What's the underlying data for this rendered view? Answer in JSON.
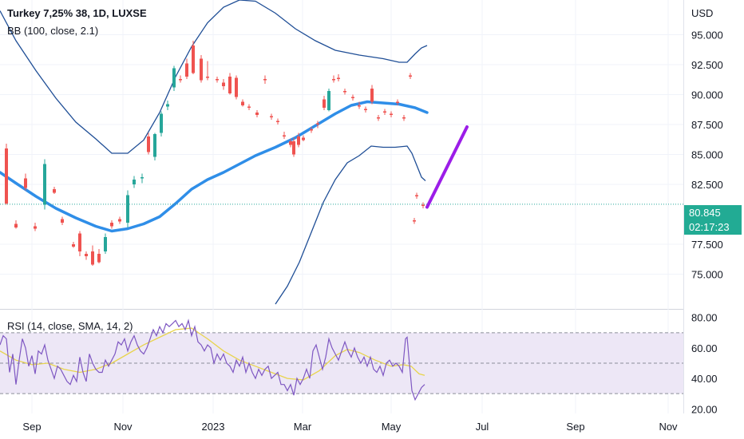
{
  "title": "Turkey  7,25% 38, 1D, LUXSE",
  "bb_label": "BB (100, close, 2.1)",
  "rsi_label": "RSI (14, close, SMA, 14, 2)",
  "currency": "USD",
  "last_price": "80.845",
  "countdown": "02:17:23",
  "colors": {
    "bb_basis": "#2f8ee8",
    "bb_band": "#1f4e96",
    "up": "#26a69a",
    "down": "#ef5350",
    "rsi_line": "#7e57c2",
    "rsi_ma": "#e8d44d",
    "rsi_band": "#ede7f6",
    "drawn_line": "#9c1de8",
    "price_line": "#26a69a"
  },
  "chart_data": [
    {
      "type": "candlestick",
      "x_ticks": [
        "Sep",
        "Nov",
        "2023",
        "Mar",
        "May",
        "Jul",
        "Sep",
        "Nov"
      ],
      "y_ticks": [
        "95.000",
        "92.500",
        "90.000",
        "87.500",
        "85.000",
        "82.500",
        "77.500",
        "75.000"
      ],
      "ylim": [
        72.5,
        97.5
      ],
      "last_price": 80.845,
      "bb_upper": [
        [
          0,
          97.0
        ],
        [
          20,
          94.5
        ],
        [
          45,
          92.0
        ],
        [
          70,
          89.7
        ],
        [
          95,
          87.7
        ],
        [
          120,
          86.3
        ],
        [
          140,
          85.1
        ],
        [
          160,
          85.1
        ],
        [
          180,
          86.2
        ],
        [
          200,
          88.5
        ],
        [
          220,
          91.5
        ],
        [
          240,
          94.0
        ],
        [
          260,
          96.0
        ],
        [
          280,
          97.3
        ],
        [
          300,
          97.9
        ],
        [
          320,
          97.8
        ],
        [
          345,
          96.8
        ],
        [
          370,
          95.5
        ],
        [
          395,
          94.5
        ],
        [
          420,
          93.7
        ],
        [
          450,
          93.3
        ],
        [
          480,
          93.0
        ],
        [
          500,
          92.7
        ],
        [
          510,
          92.7
        ],
        [
          520,
          93.4
        ],
        [
          528,
          93.9
        ],
        [
          535,
          94.1
        ]
      ],
      "bb_basis": [
        [
          0,
          83.5
        ],
        [
          20,
          82.6
        ],
        [
          45,
          81.5
        ],
        [
          70,
          80.5
        ],
        [
          95,
          79.7
        ],
        [
          120,
          79.0
        ],
        [
          140,
          78.6
        ],
        [
          160,
          78.8
        ],
        [
          180,
          79.2
        ],
        [
          200,
          79.8
        ],
        [
          220,
          80.9
        ],
        [
          240,
          82.1
        ],
        [
          260,
          82.9
        ],
        [
          280,
          83.5
        ],
        [
          300,
          84.2
        ],
        [
          320,
          84.9
        ],
        [
          345,
          85.6
        ],
        [
          370,
          86.4
        ],
        [
          395,
          87.4
        ],
        [
          420,
          88.4
        ],
        [
          440,
          89.1
        ],
        [
          460,
          89.4
        ],
        [
          480,
          89.3
        ],
        [
          500,
          89.2
        ],
        [
          520,
          88.9
        ],
        [
          535,
          88.5
        ]
      ],
      "bb_lower": [
        [
          345,
          72.5
        ],
        [
          360,
          74.0
        ],
        [
          375,
          76.0
        ],
        [
          390,
          78.5
        ],
        [
          405,
          81.0
        ],
        [
          420,
          82.9
        ],
        [
          435,
          84.3
        ],
        [
          450,
          84.9
        ],
        [
          465,
          85.7
        ],
        [
          480,
          85.6
        ],
        [
          495,
          85.6
        ],
        [
          510,
          85.7
        ],
        [
          516,
          85.1
        ],
        [
          522,
          84.1
        ],
        [
          528,
          83.1
        ],
        [
          533,
          82.8
        ]
      ],
      "candles": [
        [
          8,
          85.5,
          85.9,
          80.8,
          80.9
        ],
        [
          20,
          79.2,
          79.5,
          78.8,
          78.9
        ],
        [
          32,
          83.0,
          83.4,
          82.0,
          82.2
        ],
        [
          44,
          79.0,
          79.3,
          78.6,
          78.8
        ],
        [
          56,
          80.8,
          84.6,
          80.4,
          84.2
        ],
        [
          68,
          82.1,
          82.3,
          81.7,
          81.8
        ],
        [
          78,
          79.6,
          79.8,
          79.1,
          79.3
        ],
        [
          92,
          77.5,
          77.7,
          77.2,
          77.3
        ],
        [
          100,
          78.4,
          78.6,
          76.5,
          76.9
        ],
        [
          108,
          76.7,
          76.9,
          76.2,
          76.5
        ],
        [
          116,
          76.9,
          77.4,
          75.7,
          75.8
        ],
        [
          124,
          76.7,
          77.1,
          75.9,
          76.0
        ],
        [
          132,
          76.9,
          78.4,
          76.7,
          78.1
        ],
        [
          140,
          79.3,
          79.5,
          78.8,
          79.0
        ],
        [
          150,
          79.6,
          79.8,
          79.2,
          79.4
        ],
        [
          160,
          79.3,
          82.0,
          78.9,
          81.6
        ],
        [
          168,
          82.5,
          83.2,
          82.2,
          82.9
        ],
        [
          178,
          83.0,
          83.4,
          82.6,
          83.1
        ],
        [
          186,
          86.5,
          86.8,
          85.0,
          85.2
        ],
        [
          194,
          84.8,
          86.8,
          84.5,
          86.7
        ],
        [
          202,
          86.8,
          88.6,
          86.5,
          88.4
        ],
        [
          210,
          89.0,
          89.5,
          88.7,
          89.2
        ],
        [
          218,
          90.6,
          92.4,
          90.3,
          92.2
        ],
        [
          226,
          91.3,
          91.6,
          91.0,
          91.2
        ],
        [
          234,
          92.6,
          93.0,
          91.3,
          91.5
        ],
        [
          242,
          94.1,
          94.5,
          91.7,
          91.8
        ],
        [
          252,
          93.0,
          93.3,
          91.0,
          91.2
        ],
        [
          260,
          91.5,
          92.8,
          91.2,
          91.4
        ],
        [
          272,
          91.3,
          91.5,
          91.0,
          91.2
        ],
        [
          280,
          91.0,
          91.3,
          90.4,
          90.7
        ],
        [
          288,
          91.5,
          91.8,
          90.0,
          90.1
        ],
        [
          296,
          91.4,
          91.6,
          89.6,
          89.8
        ],
        [
          304,
          89.4,
          89.6,
          89.0,
          89.1
        ],
        [
          312,
          89.0,
          89.2,
          88.7,
          88.9
        ],
        [
          322,
          88.5,
          88.7,
          88.1,
          88.3
        ],
        [
          332,
          91.3,
          91.6,
          90.9,
          91.2
        ],
        [
          340,
          88.2,
          88.4,
          87.9,
          88.1
        ],
        [
          348,
          87.8,
          88.0,
          87.5,
          87.7
        ],
        [
          356,
          86.6,
          86.9,
          86.3,
          86.5
        ],
        [
          364,
          86.1,
          86.3,
          85.6,
          85.8
        ],
        [
          368,
          86.1,
          86.4,
          84.8,
          85.0
        ],
        [
          374,
          86.5,
          86.8,
          85.6,
          85.8
        ],
        [
          380,
          86.4,
          86.6,
          86.1,
          86.2
        ],
        [
          390,
          87.1,
          87.3,
          86.8,
          87.0
        ],
        [
          398,
          87.6,
          87.8,
          87.2,
          87.5
        ],
        [
          406,
          89.6,
          89.9,
          88.7,
          88.9
        ],
        [
          412,
          88.7,
          90.5,
          88.6,
          90.3
        ],
        [
          418,
          91.3,
          91.6,
          91.0,
          91.2
        ],
        [
          424,
          91.4,
          91.7,
          91.1,
          91.3
        ],
        [
          432,
          90.3,
          90.5,
          90.0,
          90.2
        ],
        [
          442,
          89.8,
          90.0,
          89.5,
          89.7
        ],
        [
          450,
          89.1,
          89.4,
          88.8,
          89.0
        ],
        [
          458,
          88.8,
          89.0,
          88.5,
          88.7
        ],
        [
          466,
          90.5,
          90.8,
          89.2,
          89.4
        ],
        [
          474,
          88.1,
          88.3,
          87.8,
          88.0
        ],
        [
          482,
          88.6,
          88.8,
          88.3,
          88.5
        ],
        [
          490,
          88.4,
          88.6,
          88.1,
          88.3
        ],
        [
          498,
          89.4,
          89.6,
          89.1,
          89.3
        ],
        [
          506,
          88.1,
          88.3,
          87.8,
          88.0
        ],
        [
          514,
          91.6,
          91.8,
          91.3,
          91.5
        ],
        [
          522,
          81.6,
          81.8,
          81.3,
          81.5
        ],
        [
          530,
          80.8,
          81.0,
          80.5,
          80.7
        ],
        [
          519,
          79.5,
          79.7,
          79.2,
          79.4
        ]
      ],
      "drawn_line": [
        [
          535,
          80.6
        ],
        [
          585,
          87.3
        ]
      ]
    },
    {
      "type": "line",
      "title": "RSI (14, close, SMA, 14, 2)",
      "y_ticks": [
        "80.00",
        "60.00",
        "40.00",
        "20.00"
      ],
      "ylim": [
        17,
        83
      ],
      "levels": [
        70,
        50,
        30
      ],
      "rsi": [
        [
          0,
          62
        ],
        [
          4,
          68
        ],
        [
          8,
          66
        ],
        [
          12,
          44
        ],
        [
          16,
          56
        ],
        [
          20,
          36
        ],
        [
          24,
          52
        ],
        [
          28,
          66
        ],
        [
          32,
          60
        ],
        [
          36,
          48
        ],
        [
          40,
          55
        ],
        [
          44,
          43
        ],
        [
          48,
          58
        ],
        [
          52,
          56
        ],
        [
          56,
          62
        ],
        [
          60,
          52
        ],
        [
          64,
          46
        ],
        [
          68,
          40
        ],
        [
          72,
          48
        ],
        [
          76,
          46
        ],
        [
          80,
          42
        ],
        [
          84,
          38
        ],
        [
          88,
          36
        ],
        [
          92,
          42
        ],
        [
          96,
          38
        ],
        [
          100,
          54
        ],
        [
          104,
          44
        ],
        [
          108,
          38
        ],
        [
          112,
          56
        ],
        [
          116,
          50
        ],
        [
          120,
          46
        ],
        [
          124,
          44
        ],
        [
          128,
          44
        ],
        [
          132,
          52
        ],
        [
          136,
          48
        ],
        [
          140,
          52
        ],
        [
          144,
          56
        ],
        [
          148,
          64
        ],
        [
          152,
          62
        ],
        [
          156,
          66
        ],
        [
          160,
          58
        ],
        [
          164,
          64
        ],
        [
          168,
          68
        ],
        [
          172,
          62
        ],
        [
          176,
          58
        ],
        [
          180,
          56
        ],
        [
          184,
          60
        ],
        [
          188,
          66
        ],
        [
          192,
          72
        ],
        [
          196,
          68
        ],
        [
          200,
          74
        ],
        [
          204,
          70
        ],
        [
          208,
          76
        ],
        [
          212,
          74
        ],
        [
          216,
          76
        ],
        [
          220,
          78
        ],
        [
          224,
          74
        ],
        [
          228,
          76
        ],
        [
          232,
          72
        ],
        [
          236,
          78
        ],
        [
          240,
          68
        ],
        [
          244,
          74
        ],
        [
          248,
          64
        ],
        [
          252,
          62
        ],
        [
          256,
          58
        ],
        [
          260,
          62
        ],
        [
          264,
          60
        ],
        [
          268,
          50
        ],
        [
          272,
          56
        ],
        [
          276,
          52
        ],
        [
          280,
          56
        ],
        [
          284,
          50
        ],
        [
          288,
          48
        ],
        [
          292,
          44
        ],
        [
          296,
          52
        ],
        [
          300,
          48
        ],
        [
          304,
          54
        ],
        [
          308,
          44
        ],
        [
          312,
          50
        ],
        [
          316,
          44
        ],
        [
          320,
          40
        ],
        [
          324,
          46
        ],
        [
          328,
          42
        ],
        [
          332,
          46
        ],
        [
          336,
          48
        ],
        [
          340,
          40
        ],
        [
          344,
          42
        ],
        [
          348,
          44
        ],
        [
          352,
          36
        ],
        [
          356,
          36
        ],
        [
          360,
          32
        ],
        [
          364,
          36
        ],
        [
          368,
          29
        ],
        [
          372,
          40
        ],
        [
          376,
          36
        ],
        [
          380,
          40
        ],
        [
          384,
          46
        ],
        [
          388,
          40
        ],
        [
          392,
          58
        ],
        [
          396,
          62
        ],
        [
          400,
          54
        ],
        [
          404,
          46
        ],
        [
          408,
          54
        ],
        [
          412,
          66
        ],
        [
          416,
          60
        ],
        [
          420,
          56
        ],
        [
          424,
          52
        ],
        [
          428,
          58
        ],
        [
          432,
          64
        ],
        [
          436,
          58
        ],
        [
          440,
          54
        ],
        [
          444,
          60
        ],
        [
          448,
          54
        ],
        [
          452,
          50
        ],
        [
          456,
          54
        ],
        [
          460,
          48
        ],
        [
          464,
          54
        ],
        [
          468,
          46
        ],
        [
          472,
          44
        ],
        [
          476,
          48
        ],
        [
          480,
          42
        ],
        [
          484,
          50
        ],
        [
          488,
          52
        ],
        [
          492,
          48
        ],
        [
          496,
          50
        ],
        [
          500,
          48
        ],
        [
          504,
          44
        ],
        [
          508,
          66
        ],
        [
          510,
          67
        ],
        [
          512,
          55
        ],
        [
          516,
          32
        ],
        [
          520,
          26
        ],
        [
          524,
          30
        ],
        [
          528,
          34
        ],
        [
          532,
          36
        ]
      ],
      "rsi_ma": [
        [
          0,
          58
        ],
        [
          20,
          52
        ],
        [
          40,
          49
        ],
        [
          60,
          50
        ],
        [
          80,
          46
        ],
        [
          100,
          44
        ],
        [
          120,
          46
        ],
        [
          140,
          50
        ],
        [
          160,
          56
        ],
        [
          180,
          62
        ],
        [
          200,
          67
        ],
        [
          220,
          72
        ],
        [
          240,
          73
        ],
        [
          260,
          66
        ],
        [
          280,
          58
        ],
        [
          300,
          52
        ],
        [
          320,
          48
        ],
        [
          340,
          44
        ],
        [
          360,
          40
        ],
        [
          380,
          39
        ],
        [
          400,
          45
        ],
        [
          420,
          55
        ],
        [
          435,
          59
        ],
        [
          450,
          57
        ],
        [
          470,
          52
        ],
        [
          490,
          48
        ],
        [
          505,
          49
        ],
        [
          515,
          48
        ],
        [
          525,
          43
        ],
        [
          532,
          42
        ]
      ]
    }
  ]
}
